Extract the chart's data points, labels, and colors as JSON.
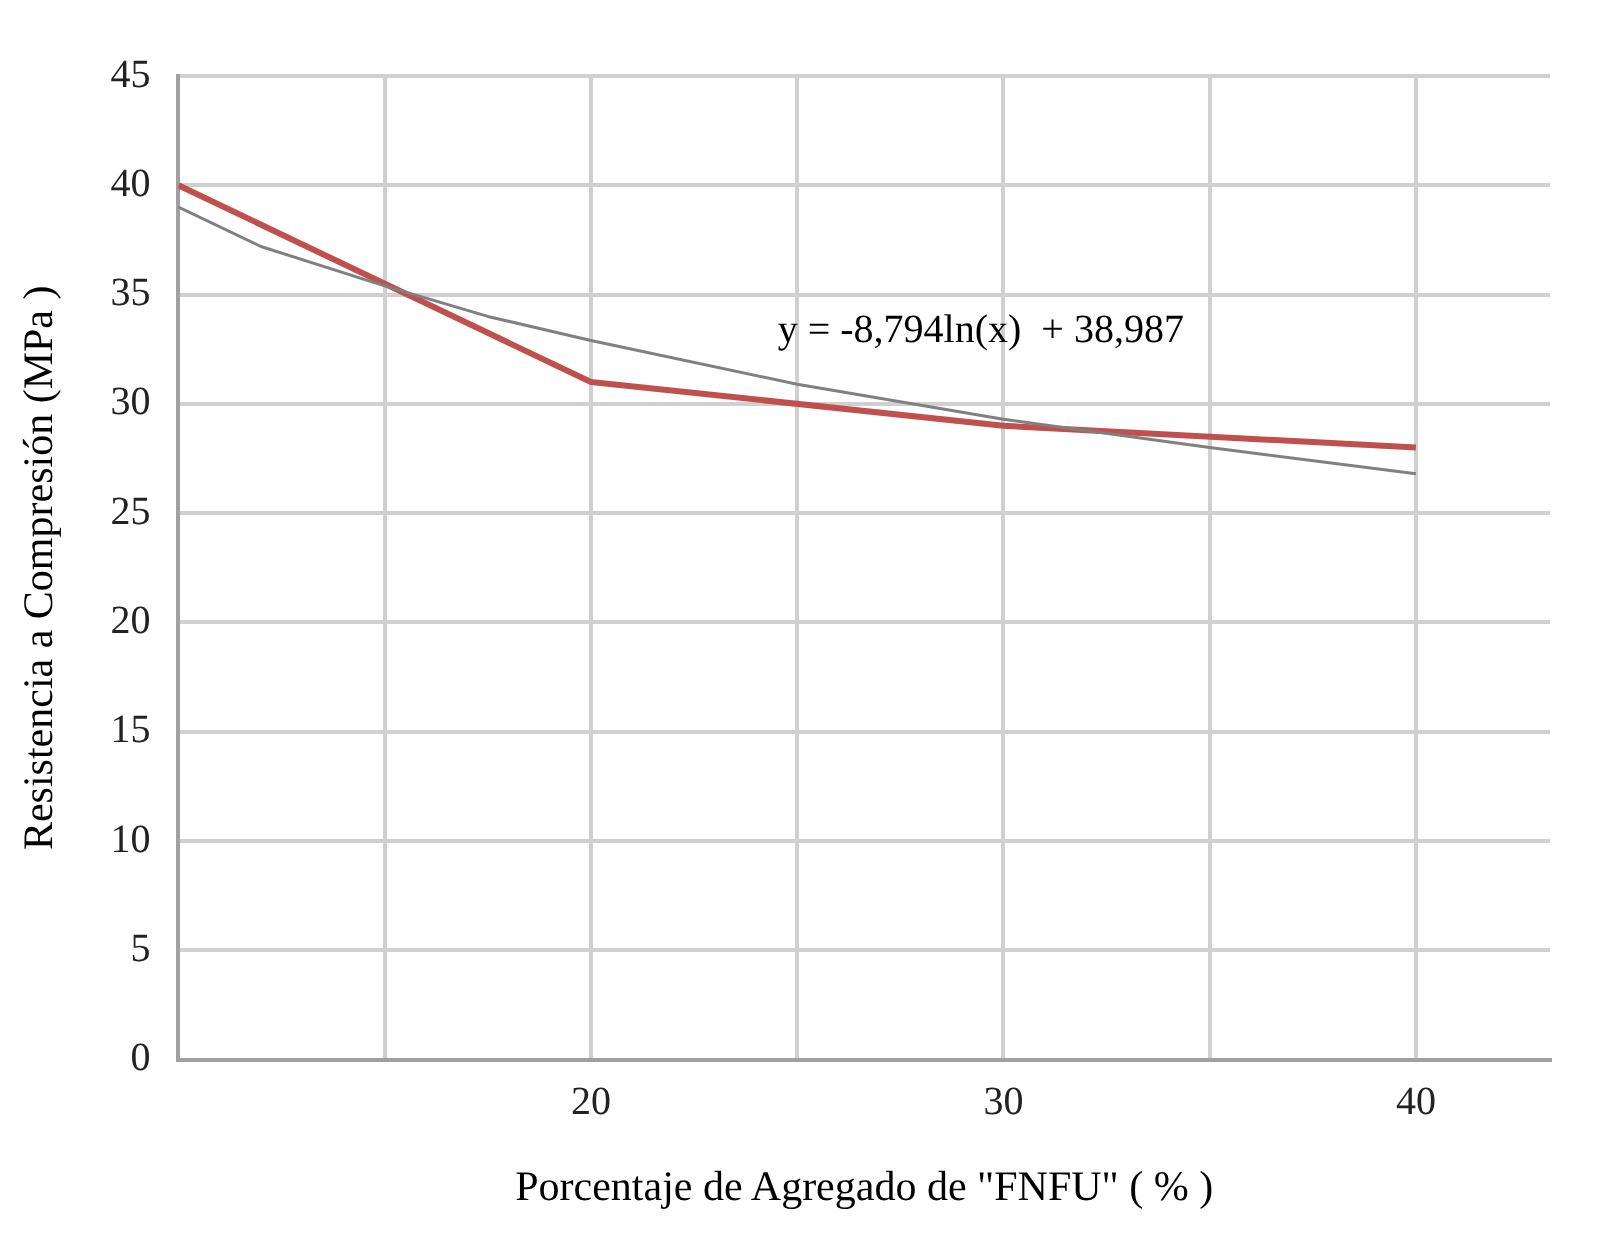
{
  "chart_data": {
    "type": "line",
    "xlabel": "Porcentaje de Agregado de \"FNFU\" ( % )",
    "ylabel": "Resistencia a Compresión (MPa )",
    "xlim": [
      10,
      43.25
    ],
    "xticks": [
      {
        "value": 10,
        "label": null
      },
      {
        "value": 15,
        "label": null
      },
      20,
      {
        "value": 25,
        "label": null
      },
      30,
      {
        "value": 35,
        "label": null
      },
      40
    ],
    "ylim": [
      0,
      45
    ],
    "yticks": [
      0,
      5,
      10,
      15,
      20,
      25,
      30,
      35,
      40,
      45
    ],
    "grid": true,
    "legend": false,
    "marker": "none",
    "series": [
      {
        "color": "#808080",
        "x": [
          10,
          12,
          15,
          17.5,
          20,
          25,
          30,
          35,
          40
        ],
        "values": [
          39,
          37.2,
          35.4,
          34,
          32.9,
          30.9,
          29.3,
          28,
          26.8
        ]
      },
      {
        "color": "#c0504d",
        "x": [
          10,
          20,
          30,
          40
        ],
        "values": [
          40,
          31,
          29,
          28
        ]
      }
    ],
    "annotations": [
      "y = -8,794ln(x)  + 38,987"
    ]
  }
}
